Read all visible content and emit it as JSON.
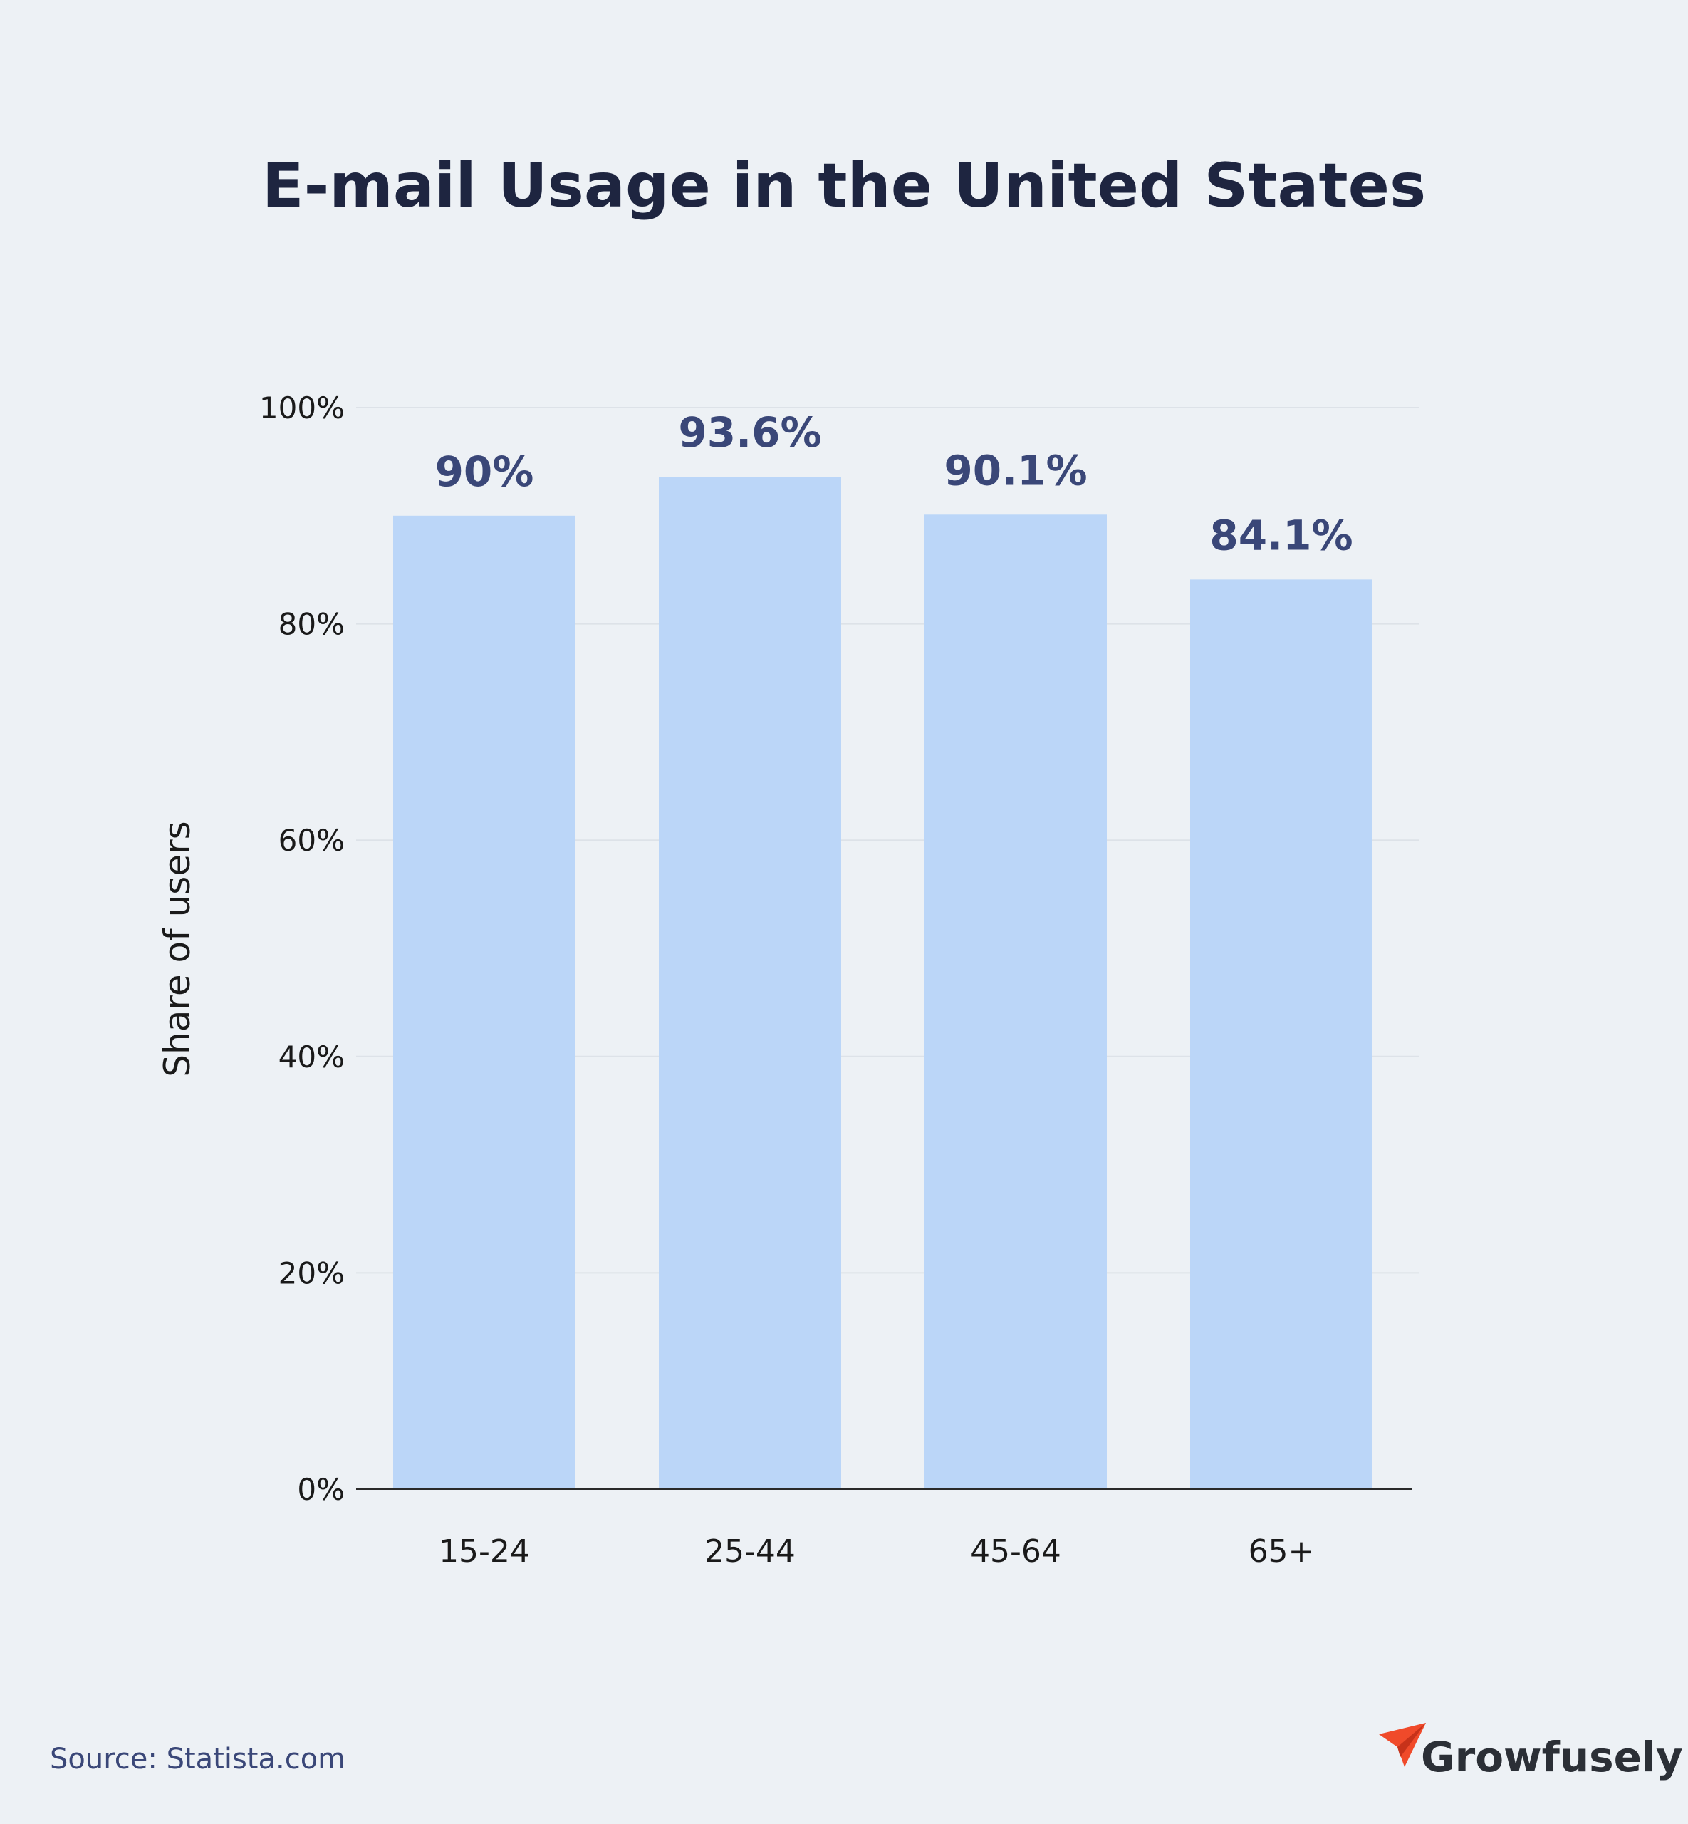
{
  "title": "E-mail Usage in the United States",
  "source": "Source: Statista.com",
  "brand": {
    "name": "Growfusely",
    "logo_icon": "paper-plane-icon",
    "logo_color": "#f04a2a"
  },
  "colors": {
    "background": "#edf1f5",
    "bar": "#bbd6f8",
    "data_label": "#3a4778",
    "title": "#1e2540"
  },
  "chart_data": {
    "type": "bar",
    "title": "E-mail Usage in the United States",
    "xlabel": "",
    "ylabel": "Share of users",
    "categories": [
      "15-24",
      "25-44",
      "45-64",
      "65+"
    ],
    "values": [
      90,
      93.6,
      90.1,
      84.1
    ],
    "data_labels": [
      "90%",
      "93.6%",
      "90.1%",
      "84.1%"
    ],
    "ylim": [
      0,
      100
    ],
    "yticks": [
      0,
      20,
      40,
      60,
      80,
      100
    ],
    "ytick_labels": [
      "0%",
      "20%",
      "40%",
      "60%",
      "80%",
      "100%"
    ],
    "grid": true,
    "legend": "none"
  }
}
